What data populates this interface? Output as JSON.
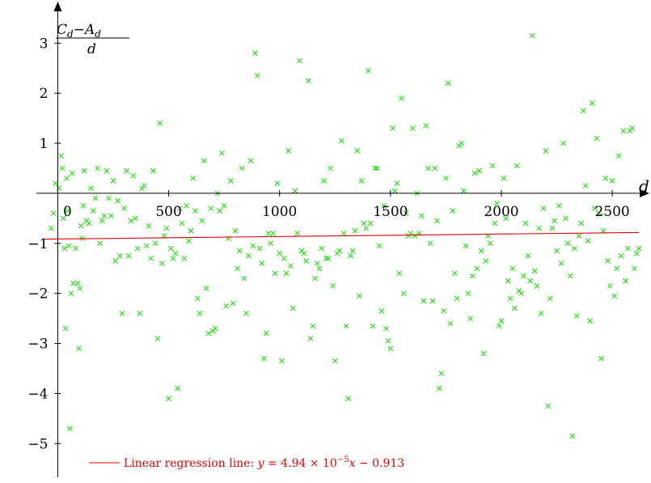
{
  "chart_data": {
    "type": "scatter",
    "title": "",
    "xlabel": "d",
    "ylabel": {
      "numerator_c": "C",
      "numerator_c_sub": "d",
      "numerator_minus": "−",
      "numerator_a": "A",
      "numerator_a_sub": "d",
      "denominator": "d"
    },
    "xlim": [
      -60,
      2620
    ],
    "ylim": [
      -5.4,
      3.7
    ],
    "x_ticks": [
      0,
      500,
      1000,
      1500,
      2000,
      2500
    ],
    "x_tick_labels": [
      "0",
      "500",
      "1000",
      "1500",
      "2000",
      "2500"
    ],
    "y_ticks": [
      -5,
      -4,
      -3,
      -2,
      -1,
      1,
      2,
      3
    ],
    "y_tick_labels": [
      "−5",
      "−4",
      "−3",
      "−2",
      "−1",
      "1",
      "2",
      "3"
    ],
    "marker": "x",
    "colors": {
      "points": "#22dd11",
      "regression": "#e00000",
      "axes": "#000000"
    },
    "regression": {
      "slope": 4.94e-05,
      "intercept": -0.913,
      "x_range": [
        -60,
        2620
      ],
      "legend": {
        "prefix": "Linear regression line: ",
        "y": "y",
        "eq": " = 4.94 × 10",
        "exp": "−5",
        "x": "x",
        "tail": " − 0.913"
      }
    },
    "legend_position": "bottom-left",
    "points": [
      [
        -30,
        -0.7
      ],
      [
        -20,
        -0.4
      ],
      [
        -10,
        0.2
      ],
      [
        5,
        0.1
      ],
      [
        15,
        0.75
      ],
      [
        20,
        0.5
      ],
      [
        25,
        -0.5
      ],
      [
        30,
        -1.1
      ],
      [
        35,
        -2.7
      ],
      [
        40,
        0.3
      ],
      [
        45,
        -0.35
      ],
      [
        50,
        -1.05
      ],
      [
        55,
        -4.7
      ],
      [
        60,
        -2.0
      ],
      [
        65,
        0.4
      ],
      [
        70,
        -1.8
      ],
      [
        80,
        -1.1
      ],
      [
        90,
        -1.8
      ],
      [
        95,
        -3.1
      ],
      [
        100,
        -1.9
      ],
      [
        105,
        -0.65
      ],
      [
        110,
        -0.9
      ],
      [
        115,
        -0.25
      ],
      [
        120,
        0.45
      ],
      [
        130,
        -0.55
      ],
      [
        140,
        -0.6
      ],
      [
        150,
        0.1
      ],
      [
        160,
        -0.35
      ],
      [
        170,
        -0.1
      ],
      [
        180,
        0.5
      ],
      [
        190,
        -1.0
      ],
      [
        200,
        -0.55
      ],
      [
        210,
        -0.45
      ],
      [
        220,
        0.45
      ],
      [
        230,
        -0.1
      ],
      [
        240,
        -0.45
      ],
      [
        250,
        0.25
      ],
      [
        260,
        -1.35
      ],
      [
        270,
        -0.15
      ],
      [
        280,
        -1.25
      ],
      [
        290,
        -2.4
      ],
      [
        300,
        -0.3
      ],
      [
        310,
        0.45
      ],
      [
        320,
        -1.25
      ],
      [
        330,
        -0.55
      ],
      [
        340,
        0.35
      ],
      [
        350,
        -0.5
      ],
      [
        360,
        -1.1
      ],
      [
        370,
        -2.4
      ],
      [
        380,
        0.1
      ],
      [
        390,
        0.15
      ],
      [
        400,
        -1.05
      ],
      [
        410,
        -0.65
      ],
      [
        420,
        -1.3
      ],
      [
        430,
        0.45
      ],
      [
        440,
        -1.0
      ],
      [
        450,
        -2.9
      ],
      [
        460,
        1.4
      ],
      [
        470,
        -1.4
      ],
      [
        480,
        -0.85
      ],
      [
        490,
        -0.7
      ],
      [
        500,
        -4.1
      ],
      [
        510,
        -1.1
      ],
      [
        520,
        -1.3
      ],
      [
        530,
        -1.2
      ],
      [
        540,
        -3.9
      ],
      [
        550,
        -0.3
      ],
      [
        560,
        -0.6
      ],
      [
        570,
        -1.3
      ],
      [
        580,
        -0.25
      ],
      [
        590,
        -0.95
      ],
      [
        600,
        -0.75
      ],
      [
        610,
        0.3
      ],
      [
        620,
        -0.35
      ],
      [
        630,
        -2.1
      ],
      [
        640,
        -2.4
      ],
      [
        650,
        -0.55
      ],
      [
        660,
        0.65
      ],
      [
        670,
        -1.9
      ],
      [
        680,
        -2.8
      ],
      [
        690,
        -0.3
      ],
      [
        700,
        -2.75
      ],
      [
        710,
        -2.7
      ],
      [
        720,
        0.0
      ],
      [
        730,
        -0.35
      ],
      [
        740,
        0.8
      ],
      [
        750,
        -0.25
      ],
      [
        760,
        -2.25
      ],
      [
        770,
        -0.9
      ],
      [
        780,
        0.25
      ],
      [
        790,
        -2.2
      ],
      [
        800,
        -0.75
      ],
      [
        810,
        -1.5
      ],
      [
        820,
        -1.15
      ],
      [
        830,
        0.5
      ],
      [
        840,
        -1.7
      ],
      [
        850,
        -2.4
      ],
      [
        860,
        -1.25
      ],
      [
        870,
        0.65
      ],
      [
        880,
        -1.05
      ],
      [
        890,
        2.8
      ],
      [
        900,
        2.35
      ],
      [
        910,
        -1.1
      ],
      [
        920,
        -1.4
      ],
      [
        930,
        -3.3
      ],
      [
        940,
        -2.8
      ],
      [
        950,
        -0.8
      ],
      [
        960,
        -1.0
      ],
      [
        970,
        -0.8
      ],
      [
        980,
        -1.6
      ],
      [
        990,
        0.2
      ],
      [
        1000,
        -1.2
      ],
      [
        1010,
        -3.35
      ],
      [
        1020,
        -1.3
      ],
      [
        1030,
        -1.6
      ],
      [
        1040,
        0.85
      ],
      [
        1050,
        -1.45
      ],
      [
        1060,
        -2.3
      ],
      [
        1070,
        0.05
      ],
      [
        1080,
        -0.8
      ],
      [
        1090,
        2.65
      ],
      [
        1100,
        -1.15
      ],
      [
        1110,
        -1.2
      ],
      [
        1120,
        -1.35
      ],
      [
        1130,
        2.25
      ],
      [
        1140,
        -2.9
      ],
      [
        1150,
        -2.65
      ],
      [
        1160,
        -1.7
      ],
      [
        1170,
        -1.4
      ],
      [
        1180,
        -1.5
      ],
      [
        1190,
        -1.1
      ],
      [
        1200,
        0.25
      ],
      [
        1210,
        -1.3
      ],
      [
        1220,
        -1.3
      ],
      [
        1230,
        0.5
      ],
      [
        1240,
        -1.85
      ],
      [
        1250,
        -3.35
      ],
      [
        1260,
        -1.2
      ],
      [
        1270,
        -1.15
      ],
      [
        1280,
        1.05
      ],
      [
        1290,
        -0.8
      ],
      [
        1300,
        -2.65
      ],
      [
        1310,
        -4.1
      ],
      [
        1320,
        -1.25
      ],
      [
        1330,
        -1.15
      ],
      [
        1340,
        -0.75
      ],
      [
        1350,
        0.85
      ],
      [
        1360,
        -2.05
      ],
      [
        1370,
        0.25
      ],
      [
        1380,
        -0.6
      ],
      [
        1390,
        -0.7
      ],
      [
        1400,
        2.45
      ],
      [
        1410,
        -0.6
      ],
      [
        1420,
        -2.65
      ],
      [
        1430,
        0.5
      ],
      [
        1440,
        0.5
      ],
      [
        1450,
        -1.05
      ],
      [
        1460,
        -2.35
      ],
      [
        1470,
        -0.25
      ],
      [
        1480,
        -2.7
      ],
      [
        1490,
        -2.95
      ],
      [
        1500,
        -3.1
      ],
      [
        1510,
        1.3
      ],
      [
        1520,
        0.05
      ],
      [
        1530,
        0.2
      ],
      [
        1540,
        -1.6
      ],
      [
        1550,
        1.9
      ],
      [
        1560,
        -2.0
      ],
      [
        1570,
        -0.4
      ],
      [
        1580,
        -0.85
      ],
      [
        1590,
        -0.8
      ],
      [
        1600,
        1.3
      ],
      [
        1610,
        -0.85
      ],
      [
        1620,
        0.0
      ],
      [
        1630,
        -0.8
      ],
      [
        1640,
        -0.45
      ],
      [
        1650,
        -2.15
      ],
      [
        1660,
        1.35
      ],
      [
        1670,
        0.5
      ],
      [
        1680,
        -1.0
      ],
      [
        1690,
        -2.15
      ],
      [
        1700,
        0.5
      ],
      [
        1710,
        -0.55
      ],
      [
        1720,
        -3.9
      ],
      [
        1730,
        -3.6
      ],
      [
        1740,
        -2.35
      ],
      [
        1750,
        0.3
      ],
      [
        1760,
        2.2
      ],
      [
        1770,
        -2.6
      ],
      [
        1780,
        -0.35
      ],
      [
        1790,
        -1.6
      ],
      [
        1800,
        -2.1
      ],
      [
        1810,
        0.95
      ],
      [
        1820,
        1.0
      ],
      [
        1830,
        0.05
      ],
      [
        1840,
        -1.05
      ],
      [
        1850,
        -2.0
      ],
      [
        1860,
        -2.5
      ],
      [
        1870,
        -1.65
      ],
      [
        1880,
        0.4
      ],
      [
        1890,
        -1.5
      ],
      [
        1900,
        0.45
      ],
      [
        1910,
        -1.15
      ],
      [
        1920,
        -3.2
      ],
      [
        1930,
        -1.35
      ],
      [
        1940,
        -0.85
      ],
      [
        1950,
        -1.0
      ],
      [
        1960,
        0.55
      ],
      [
        1970,
        -0.6
      ],
      [
        1980,
        -0.2
      ],
      [
        1990,
        -2.65
      ],
      [
        2000,
        -2.55
      ],
      [
        2010,
        0.3
      ],
      [
        2020,
        -0.5
      ],
      [
        2030,
        -1.75
      ],
      [
        2040,
        -2.1
      ],
      [
        2050,
        -1.5
      ],
      [
        2060,
        -2.3
      ],
      [
        2070,
        0.55
      ],
      [
        2080,
        -1.95
      ],
      [
        2090,
        -2.0
      ],
      [
        2100,
        -1.65
      ],
      [
        2110,
        -0.6
      ],
      [
        2120,
        -1.25
      ],
      [
        2130,
        -1.75
      ],
      [
        2140,
        3.15
      ],
      [
        2150,
        -1.55
      ],
      [
        2160,
        -1.85
      ],
      [
        2170,
        -0.7
      ],
      [
        2180,
        -2.4
      ],
      [
        2190,
        -0.3
      ],
      [
        2200,
        0.85
      ],
      [
        2210,
        -4.25
      ],
      [
        2220,
        -2.1
      ],
      [
        2230,
        -0.7
      ],
      [
        2240,
        -0.55
      ],
      [
        2250,
        -1.15
      ],
      [
        2260,
        -0.25
      ],
      [
        2270,
        -1.4
      ],
      [
        2280,
        1.0
      ],
      [
        2290,
        -0.5
      ],
      [
        2300,
        -1.0
      ],
      [
        2310,
        -1.65
      ],
      [
        2320,
        -4.85
      ],
      [
        2330,
        -1.1
      ],
      [
        2340,
        -2.45
      ],
      [
        2350,
        -0.85
      ],
      [
        2360,
        -0.6
      ],
      [
        2370,
        1.65
      ],
      [
        2380,
        0.15
      ],
      [
        2390,
        -0.95
      ],
      [
        2400,
        -2.55
      ],
      [
        2410,
        1.8
      ],
      [
        2420,
        -0.3
      ],
      [
        2430,
        1.1
      ],
      [
        2440,
        -0.4
      ],
      [
        2450,
        -3.3
      ],
      [
        2460,
        -0.75
      ],
      [
        2470,
        0.3
      ],
      [
        2480,
        -1.35
      ],
      [
        2490,
        -1.85
      ],
      [
        2500,
        0.25
      ],
      [
        2510,
        -2.05
      ],
      [
        2520,
        -1.5
      ],
      [
        2530,
        0.75
      ],
      [
        2540,
        -1.25
      ],
      [
        2550,
        1.25
      ],
      [
        2560,
        -1.75
      ],
      [
        2570,
        -1.1
      ],
      [
        2580,
        1.25
      ],
      [
        2590,
        1.3
      ],
      [
        2600,
        -1.5
      ],
      [
        2610,
        -1.2
      ],
      [
        2620,
        -1.1
      ]
    ]
  }
}
